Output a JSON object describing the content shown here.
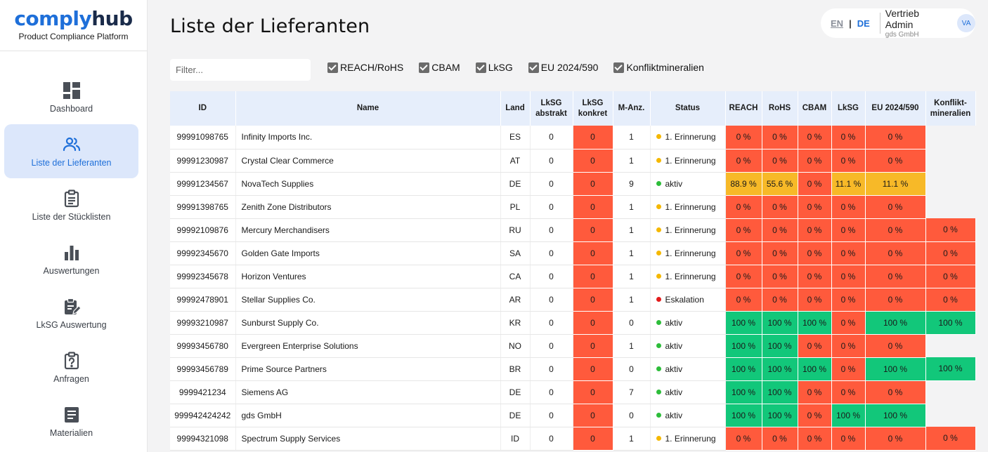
{
  "brand": {
    "logo_part1": "comply",
    "logo_part2": "hub",
    "subtitle": "Product Compliance Platform"
  },
  "sidebar": {
    "items": [
      {
        "label": "Dashboard",
        "icon": "dashboard-icon",
        "active": false
      },
      {
        "label": "Liste der Lieferanten",
        "icon": "users-icon",
        "active": true
      },
      {
        "label": "Liste der Stücklisten",
        "icon": "clipboard-icon",
        "active": false
      },
      {
        "label": "Auswertungen",
        "icon": "bar-chart-icon",
        "active": false
      },
      {
        "label": "LkSG Auswertung",
        "icon": "clipboard-edit-icon",
        "active": false
      },
      {
        "label": "Anfragen",
        "icon": "question-clipboard-icon",
        "active": false
      },
      {
        "label": "Materialien",
        "icon": "document-icon",
        "active": false
      }
    ]
  },
  "header": {
    "title": "Liste der Lieferanten"
  },
  "user": {
    "lang_en": "EN",
    "lang_sep": "|",
    "lang_de": "DE",
    "name": "Vertrieb Admin",
    "org": "gds GmbH",
    "initials": "VA"
  },
  "filter": {
    "placeholder": "Filter...",
    "value": ""
  },
  "checkboxes": [
    {
      "label": "REACH/RoHS",
      "checked": true
    },
    {
      "label": "CBAM",
      "checked": true
    },
    {
      "label": "LkSG",
      "checked": true
    },
    {
      "label": "EU 2024/590",
      "checked": true
    },
    {
      "label": "Konfliktmineralien",
      "checked": true
    }
  ],
  "table": {
    "columns": [
      "ID",
      "Name",
      "Land",
      "LkSG\nabstrakt",
      "LkSG\nkonkret",
      "M-Anz.",
      "Status",
      "REACH",
      "RoHS",
      "CBAM",
      "LkSG",
      "EU 2024/590",
      "Konflikt-\nmineralien"
    ],
    "status_colors": {
      "1. Erinnerung": "#f5b800",
      "aktiv": "#2dbd3a",
      "Eskalation": "#e31b1b"
    },
    "rows": [
      {
        "id": "99991098765",
        "name": "Infinity Imports Inc.",
        "land": "ES",
        "abstrakt": "0",
        "konkret": "0",
        "manz": "1",
        "status": "1. Erinnerung",
        "reach": "0 %",
        "rohs": "0 %",
        "cbam": "0 %",
        "lksg": "0 %",
        "eu": "0 %",
        "konflikt": ""
      },
      {
        "id": "99991230987",
        "name": "Crystal Clear Commerce",
        "land": "AT",
        "abstrakt": "0",
        "konkret": "0",
        "manz": "1",
        "status": "1. Erinnerung",
        "reach": "0 %",
        "rohs": "0 %",
        "cbam": "0 %",
        "lksg": "0 %",
        "eu": "0 %",
        "konflikt": ""
      },
      {
        "id": "99991234567",
        "name": "NovaTech Supplies",
        "land": "DE",
        "abstrakt": "0",
        "konkret": "0",
        "manz": "9",
        "status": "aktiv",
        "reach": "88.9 %",
        "rohs": "55.6 %",
        "cbam": "0 %",
        "lksg": "11.1 %",
        "eu": "11.1 %",
        "konflikt": ""
      },
      {
        "id": "99991398765",
        "name": "Zenith Zone Distributors",
        "land": "PL",
        "abstrakt": "0",
        "konkret": "0",
        "manz": "1",
        "status": "1. Erinnerung",
        "reach": "0 %",
        "rohs": "0 %",
        "cbam": "0 %",
        "lksg": "0 %",
        "eu": "0 %",
        "konflikt": ""
      },
      {
        "id": "99992109876",
        "name": "Mercury Merchandisers",
        "land": "RU",
        "abstrakt": "0",
        "konkret": "0",
        "manz": "1",
        "status": "1. Erinnerung",
        "reach": "0 %",
        "rohs": "0 %",
        "cbam": "0 %",
        "lksg": "0 %",
        "eu": "0 %",
        "konflikt": "0 %"
      },
      {
        "id": "99992345670",
        "name": "Golden Gate Imports",
        "land": "SA",
        "abstrakt": "0",
        "konkret": "0",
        "manz": "1",
        "status": "1. Erinnerung",
        "reach": "0 %",
        "rohs": "0 %",
        "cbam": "0 %",
        "lksg": "0 %",
        "eu": "0 %",
        "konflikt": "0 %"
      },
      {
        "id": "99992345678",
        "name": "Horizon Ventures",
        "land": "CA",
        "abstrakt": "0",
        "konkret": "0",
        "manz": "1",
        "status": "1. Erinnerung",
        "reach": "0 %",
        "rohs": "0 %",
        "cbam": "0 %",
        "lksg": "0 %",
        "eu": "0 %",
        "konflikt": "0 %"
      },
      {
        "id": "99992478901",
        "name": "Stellar Supplies Co.",
        "land": "AR",
        "abstrakt": "0",
        "konkret": "0",
        "manz": "1",
        "status": "Eskalation",
        "reach": "0 %",
        "rohs": "0 %",
        "cbam": "0 %",
        "lksg": "0 %",
        "eu": "0 %",
        "konflikt": "0 %"
      },
      {
        "id": "99993210987",
        "name": "Sunburst Supply Co.",
        "land": "KR",
        "abstrakt": "0",
        "konkret": "0",
        "manz": "0",
        "status": "aktiv",
        "reach": "100 %",
        "rohs": "100 %",
        "cbam": "100 %",
        "lksg": "0 %",
        "eu": "100 %",
        "konflikt": "100 %"
      },
      {
        "id": "99993456780",
        "name": "Evergreen Enterprise Solutions",
        "land": "NO",
        "abstrakt": "0",
        "konkret": "0",
        "manz": "1",
        "status": "aktiv",
        "reach": "100 %",
        "rohs": "100 %",
        "cbam": "0 %",
        "lksg": "0 %",
        "eu": "0 %",
        "konflikt": ""
      },
      {
        "id": "99993456789",
        "name": "Prime Source Partners",
        "land": "BR",
        "abstrakt": "0",
        "konkret": "0",
        "manz": "0",
        "status": "aktiv",
        "reach": "100 %",
        "rohs": "100 %",
        "cbam": "100 %",
        "lksg": "0 %",
        "eu": "100 %",
        "konflikt": "100 %"
      },
      {
        "id": "9999421234",
        "name": "Siemens AG",
        "land": "DE",
        "abstrakt": "0",
        "konkret": "0",
        "manz": "7",
        "status": "aktiv",
        "reach": "100 %",
        "rohs": "100 %",
        "cbam": "0 %",
        "lksg": "0 %",
        "eu": "0 %",
        "konflikt": ""
      },
      {
        "id": "999942424242",
        "name": "gds GmbH",
        "land": "DE",
        "abstrakt": "0",
        "konkret": "0",
        "manz": "0",
        "status": "aktiv",
        "reach": "100 %",
        "rohs": "100 %",
        "cbam": "0 %",
        "lksg": "100 %",
        "eu": "100 %",
        "konflikt": ""
      },
      {
        "id": "99994321098",
        "name": "Spectrum Supply Services",
        "land": "ID",
        "abstrakt": "0",
        "konkret": "0",
        "manz": "1",
        "status": "1. Erinnerung",
        "reach": "0 %",
        "rohs": "0 %",
        "cbam": "0 %",
        "lksg": "0 %",
        "eu": "0 %",
        "konflikt": "0 %"
      }
    ]
  }
}
